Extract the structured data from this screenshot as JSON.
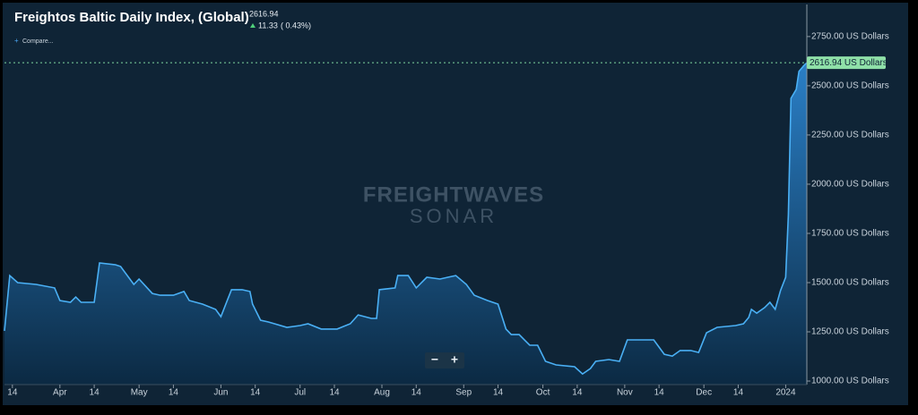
{
  "chart_data": {
    "type": "area",
    "title": "Freightos Baltic Daily Index, (Global)",
    "last_value": 2616.94,
    "change": 11.33,
    "change_percent": "( 0.43%)",
    "compare": "Compare...",
    "price_tag": "2616.94 US Dollars",
    "watermark": [
      "FREIGHTWAVES",
      "SONAR"
    ],
    "zoom_buttons": [
      "−",
      "+"
    ],
    "color": "#4ab0f5",
    "grid": false,
    "x": [
      10,
      12,
      15,
      22,
      29,
      31,
      35,
      37,
      39,
      44,
      46,
      52,
      54,
      59,
      61,
      66,
      69,
      74,
      78,
      80,
      85,
      90,
      92,
      96,
      100,
      103,
      104,
      107,
      110,
      117,
      122,
      125,
      130,
      136,
      141,
      144,
      149,
      151,
      152,
      158,
      159,
      163,
      166,
      170,
      175,
      178,
      181,
      185,
      188,
      193,
      197,
      200,
      202,
      205,
      209,
      212,
      215,
      219,
      226,
      229,
      232,
      234,
      239,
      243,
      246,
      251,
      256,
      260,
      263,
      266,
      270,
      273,
      276,
      280,
      287,
      290,
      292,
      293,
      295,
      298,
      300,
      302,
      304,
      306,
      307,
      308,
      310,
      311,
      313,
      314
    ],
    "values": [
      1255,
      1536,
      1500,
      1491,
      1473,
      1409,
      1400,
      1427,
      1400,
      1400,
      1600,
      1591,
      1582,
      1491,
      1518,
      1445,
      1436,
      1436,
      1455,
      1409,
      1391,
      1364,
      1327,
      1464,
      1464,
      1455,
      1391,
      1309,
      1300,
      1273,
      1282,
      1291,
      1264,
      1264,
      1291,
      1336,
      1318,
      1318,
      1464,
      1473,
      1536,
      1536,
      1473,
      1527,
      1518,
      1527,
      1536,
      1491,
      1436,
      1409,
      1391,
      1264,
      1236,
      1236,
      1182,
      1182,
      1100,
      1082,
      1073,
      1036,
      1064,
      1100,
      1109,
      1100,
      1209,
      1209,
      1209,
      1136,
      1127,
      1155,
      1155,
      1145,
      1245,
      1273,
      1282,
      1291,
      1323,
      1364,
      1345,
      1373,
      1400,
      1364,
      1459,
      1527,
      1845,
      2436,
      2482,
      2573,
      2605,
      2616.94
    ],
    "xlim": [
      10,
      314
    ],
    "xticks": [
      {
        "value": 13,
        "label": "14"
      },
      {
        "value": 31,
        "label": "Apr"
      },
      {
        "value": 44,
        "label": "14"
      },
      {
        "value": 61,
        "label": "May"
      },
      {
        "value": 74,
        "label": "14"
      },
      {
        "value": 92,
        "label": "Jun"
      },
      {
        "value": 105,
        "label": "14"
      },
      {
        "value": 122,
        "label": "Jul"
      },
      {
        "value": 135,
        "label": "14"
      },
      {
        "value": 153,
        "label": "Aug"
      },
      {
        "value": 166,
        "label": "14"
      },
      {
        "value": 184,
        "label": "Sep"
      },
      {
        "value": 197,
        "label": "14"
      },
      {
        "value": 214,
        "label": "Oct"
      },
      {
        "value": 227,
        "label": "14"
      },
      {
        "value": 245,
        "label": "Nov"
      },
      {
        "value": 258,
        "label": "14"
      },
      {
        "value": 275,
        "label": "Dec"
      },
      {
        "value": 288,
        "label": "14"
      },
      {
        "value": 306,
        "label": "2024"
      }
    ],
    "ylim": [
      982,
      2913
    ],
    "yticks": [
      {
        "value": 1000,
        "label": "1000.00 US Dollars"
      },
      {
        "value": 1250,
        "label": "1250.00 US Dollars"
      },
      {
        "value": 1500,
        "label": "1500.00 US Dollars"
      },
      {
        "value": 1750,
        "label": "1750.00 US Dollars"
      },
      {
        "value": 2000,
        "label": "2000.00 US Dollars"
      },
      {
        "value": 2250,
        "label": "2250.00 US Dollars"
      },
      {
        "value": 2500,
        "label": "2500.00 US Dollars"
      },
      {
        "value": 2750,
        "label": "2750.00 US Dollars"
      }
    ]
  }
}
